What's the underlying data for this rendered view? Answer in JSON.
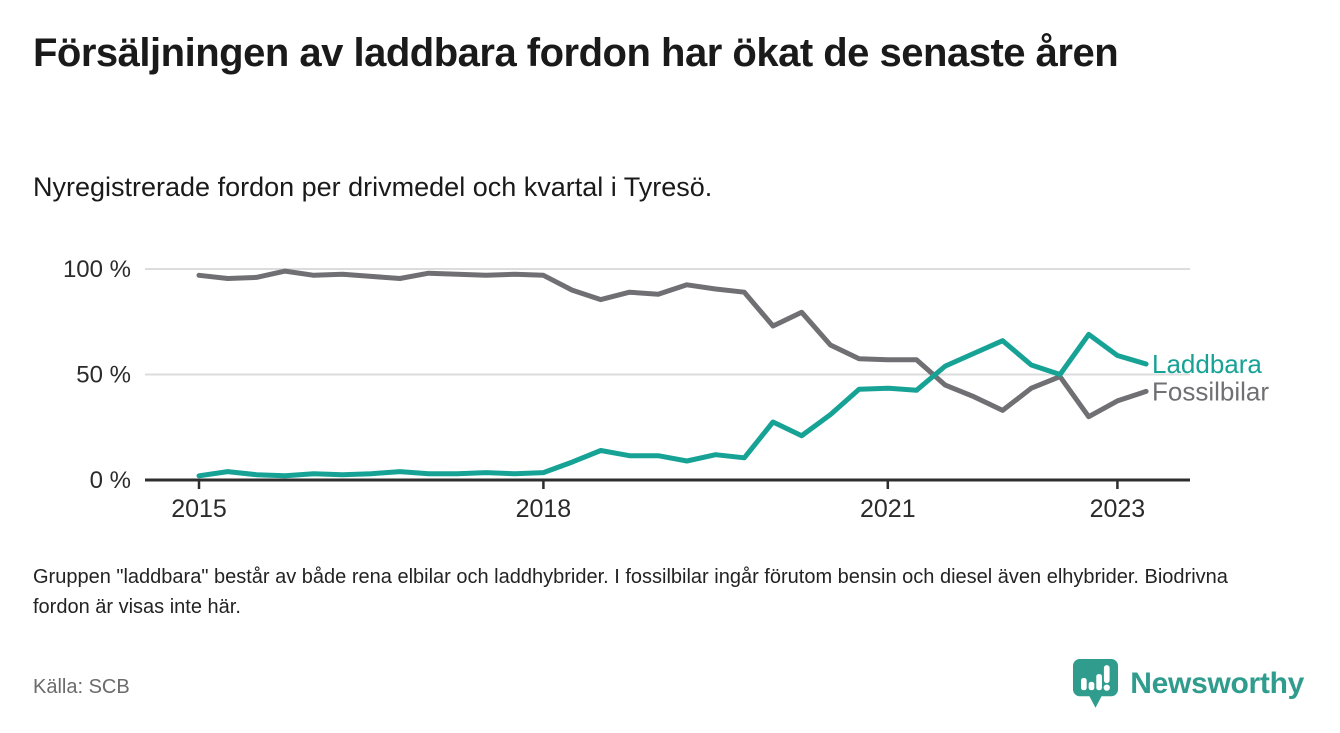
{
  "header": {
    "title": "Försäljningen av laddbara fordon har ökat de senaste åren",
    "subtitle": "Nyregistrerade fordon per drivmedel och kvartal i Tyresö."
  },
  "chart_data": {
    "type": "line",
    "x": [
      "2015K1",
      "2015K2",
      "2015K3",
      "2015K4",
      "2016K1",
      "2016K2",
      "2016K3",
      "2016K4",
      "2017K1",
      "2017K2",
      "2017K3",
      "2017K4",
      "2018K1",
      "2018K2",
      "2018K3",
      "2018K4",
      "2019K1",
      "2019K2",
      "2019K3",
      "2019K4",
      "2020K1",
      "2020K2",
      "2020K3",
      "2020K4",
      "2021K1",
      "2021K2",
      "2021K3",
      "2021K4",
      "2022K1",
      "2022K2",
      "2022K3",
      "2022K4",
      "2023K1",
      "2023K2"
    ],
    "series": [
      {
        "name": "Laddbara",
        "color": "#17a296",
        "values": [
          2,
          4,
          2.5,
          2,
          3,
          2.5,
          3,
          4,
          3,
          3,
          3.5,
          3,
          3.5,
          8.5,
          14,
          11.5,
          11.5,
          9,
          12,
          10.5,
          27.5,
          21,
          31,
          43,
          43.5,
          42.5,
          54,
          60,
          66,
          54.5,
          50,
          69,
          59,
          55
        ]
      },
      {
        "name": "Fossilbilar",
        "color": "#707074",
        "values": [
          97,
          95.5,
          96,
          99,
          97,
          97.5,
          96.5,
          95.5,
          98,
          97.5,
          97,
          97.5,
          97,
          90,
          85.5,
          89,
          88,
          92.5,
          90.5,
          89,
          73,
          79.5,
          64,
          57.5,
          57,
          57,
          45,
          39.5,
          33,
          43.5,
          49,
          30,
          37.5,
          42
        ]
      }
    ],
    "x_ticks": [
      {
        "label": "2015",
        "index": 0
      },
      {
        "label": "2018",
        "index": 12
      },
      {
        "label": "2021",
        "index": 24
      },
      {
        "label": "2023",
        "index": 32
      }
    ],
    "y_ticks": [
      {
        "label": "0 %",
        "value": 0
      },
      {
        "label": "50 %",
        "value": 50
      },
      {
        "label": "100 %",
        "value": 100
      }
    ],
    "ylim": [
      0,
      100
    ],
    "unit": "%",
    "grid": "horizontal",
    "legend_position": "right-end-of-line",
    "title": "Försäljningen av laddbara fordon har ökat de senaste åren",
    "xlabel": "",
    "ylabel": ""
  },
  "footer": {
    "note": "Gruppen \"laddbara\" består av både rena elbilar och laddhybrider. I fossilbilar ingår förutom bensin och diesel även elhybrider. Biodrivna fordon är visas inte här.",
    "source": "Källa: SCB",
    "logo_text": "Newsworthy"
  },
  "colors": {
    "accent": "#17a296",
    "gray_line": "#707074",
    "grid": "#dcdcdc",
    "axis": "#2e2e2e",
    "text_dark": "#1a1a1a",
    "text_muted": "#6b6b6b",
    "logo": "#2f9c8d"
  }
}
